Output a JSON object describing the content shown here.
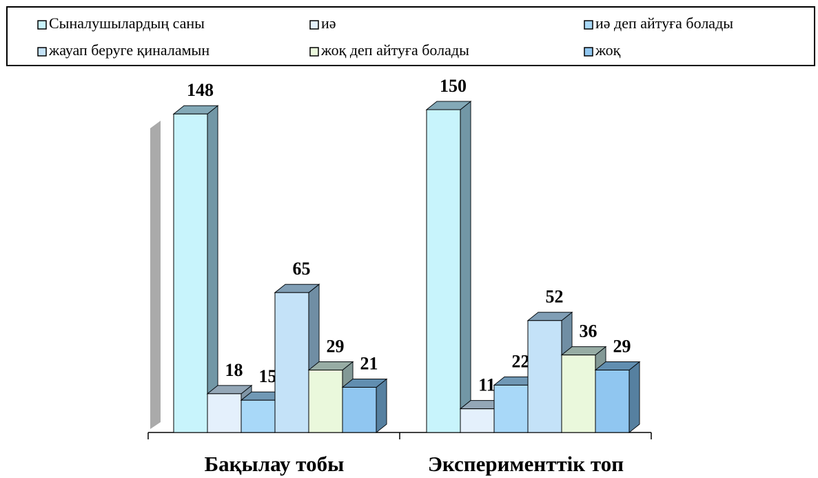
{
  "chart_data": {
    "type": "bar3d",
    "categories": [
      "Бақылау тобы",
      "Эксперименттік топ"
    ],
    "series": [
      {
        "name": "Сыналушылардың саны",
        "color": "#c8f4fc",
        "values": [
          148,
          150
        ]
      },
      {
        "name": "иә",
        "color": "#e4f0fc",
        "values": [
          18,
          11
        ]
      },
      {
        "name": "иә деп айтуға болады",
        "color": "#a8d8f8",
        "values": [
          15,
          22
        ]
      },
      {
        "name": "жауап беруге қиналамын",
        "color": "#c4e2f8",
        "values": [
          65,
          52
        ]
      },
      {
        "name": "жоқ деп айтуға болады",
        "color": "#eaf8dc",
        "values": [
          29,
          36
        ]
      },
      {
        "name": "жоқ",
        "color": "#90c6f0",
        "values": [
          21,
          29
        ]
      }
    ],
    "ylim": [
      0,
      150
    ]
  }
}
